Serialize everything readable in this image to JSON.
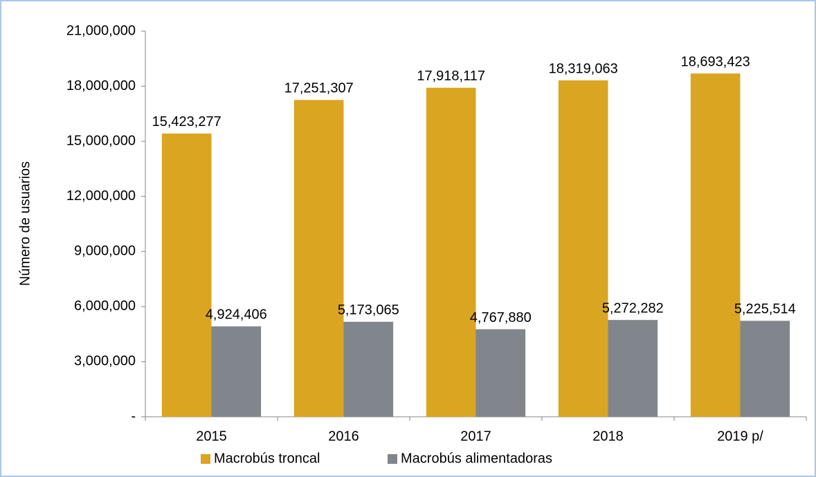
{
  "chart_data": {
    "type": "bar",
    "y_label": "Número de usuarios",
    "categories": [
      "2015",
      "2016",
      "2017",
      "2018",
      "2019 p/"
    ],
    "series": [
      {
        "name": "Macrobús troncal",
        "color": "#daa520",
        "values": [
          15423277,
          17251307,
          17918117,
          18319063,
          18693423
        ],
        "value_labels": [
          "15,423,277",
          "17,251,307",
          "17,918,117",
          "18,319,063",
          "18,693,423"
        ]
      },
      {
        "name": "Macrobús alimentadoras",
        "color": "#80868b",
        "values": [
          4924406,
          5173065,
          4767880,
          5272282,
          5225514
        ],
        "value_labels": [
          "4,924,406",
          "5,173,065",
          "4,767,880",
          "5,272,282",
          "5,225,514"
        ]
      }
    ],
    "ylim": [
      0,
      21000000
    ],
    "yticks": [
      {
        "value": 0,
        "label": "-"
      },
      {
        "value": 3000000,
        "label": "3,000,000"
      },
      {
        "value": 6000000,
        "label": "6,000,000"
      },
      {
        "value": 9000000,
        "label": "9,000,000"
      },
      {
        "value": 12000000,
        "label": "12,000,000"
      },
      {
        "value": 15000000,
        "label": "15,000,000"
      },
      {
        "value": 18000000,
        "label": "18,000,000"
      },
      {
        "value": 21000000,
        "label": "21,000,000"
      }
    ],
    "grid": false,
    "legend": "bottom"
  }
}
